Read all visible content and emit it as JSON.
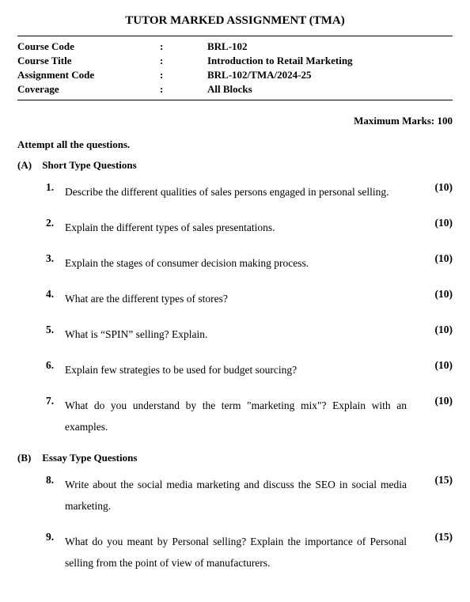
{
  "title": "TUTOR MARKED ASSIGNMENT (TMA)",
  "info": {
    "rows": [
      {
        "label": "Course Code",
        "value": "BRL-102"
      },
      {
        "label": "Course Title",
        "value": "Introduction to Retail Marketing"
      },
      {
        "label": "Assignment Code",
        "value": "BRL-102/TMA/2024-25"
      },
      {
        "label": "Coverage",
        "value": "All Blocks"
      }
    ]
  },
  "max_marks": "Maximum Marks: 100",
  "instruction": "Attempt all the questions.",
  "sections": [
    {
      "label": "(A)",
      "title": "Short Type Questions",
      "questions": [
        {
          "num": "1.",
          "text": "Describe the different qualities of sales persons engaged in personal selling.",
          "marks": "(10)"
        },
        {
          "num": "2.",
          "text": "Explain the different types of sales presentations.",
          "marks": "(10)"
        },
        {
          "num": "3.",
          "text": "Explain the stages of consumer decision making process.",
          "marks": "(10)"
        },
        {
          "num": "4.",
          "text": "What are the different types of stores?",
          "marks": "(10)"
        },
        {
          "num": "5.",
          "text": "What is “SPIN” selling? Explain.",
          "marks": "(10)"
        },
        {
          "num": "6.",
          "text": "Explain few strategies to be used for budget sourcing?",
          "marks": "(10)"
        },
        {
          "num": "7.",
          "text": "What do you understand by the term \"marketing mix\"? Explain with an examples.",
          "marks": "(10)"
        }
      ]
    },
    {
      "label": "(B)",
      "title": "Essay Type Questions",
      "questions": [
        {
          "num": "8.",
          "text": "Write about the social media marketing and discuss the SEO in social media marketing.",
          "marks": "(15)"
        },
        {
          "num": "9.",
          "text": "What do you meant by Personal selling? Explain the importance of Personal selling from the point of view of manufacturers.",
          "marks": "(15)"
        }
      ]
    }
  ]
}
